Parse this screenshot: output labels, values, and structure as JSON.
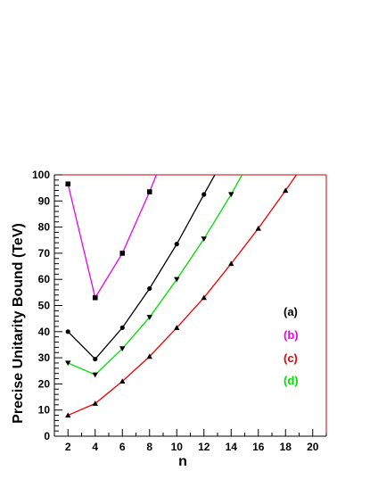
{
  "chart_data": {
    "type": "line",
    "xlabel": "n",
    "ylabel": "Precise Unitarity Bound (TeV)",
    "xlim": [
      1,
      21
    ],
    "ylim": [
      0,
      100
    ],
    "x_ticks": [
      2,
      4,
      6,
      8,
      10,
      12,
      14,
      16,
      18,
      20
    ],
    "y_ticks": [
      0,
      10,
      20,
      30,
      40,
      50,
      60,
      70,
      80,
      90,
      100
    ],
    "grid": false,
    "legend_placement": "right",
    "series": [
      {
        "name": "(a)",
        "color": "#000000",
        "marker": "circle",
        "points": [
          [
            2,
            40
          ],
          [
            4,
            29.5
          ],
          [
            6,
            41.5
          ],
          [
            8,
            56.5
          ],
          [
            10,
            73.5
          ],
          [
            12,
            92.5
          ]
        ],
        "curve_end": [
          12.8,
          100
        ]
      },
      {
        "name": "(b)",
        "color": "#ee00ee",
        "marker": "square",
        "points": [
          [
            2,
            96.5
          ],
          [
            4,
            53
          ],
          [
            6,
            70
          ],
          [
            8,
            93.5
          ]
        ],
        "curve_end": [
          8.5,
          100
        ]
      },
      {
        "name": "(c)",
        "color": "#ee0000",
        "marker": "triangle-up",
        "points": [
          [
            2,
            8
          ],
          [
            4,
            12.5
          ],
          [
            6,
            21
          ],
          [
            8,
            30.5
          ],
          [
            10,
            41.5
          ],
          [
            12,
            53
          ],
          [
            14,
            66
          ],
          [
            16,
            79.5
          ],
          [
            18,
            94
          ]
        ],
        "curve_end": [
          18.8,
          100
        ]
      },
      {
        "name": "(d)",
        "color": "#00dd00",
        "marker": "triangle-down",
        "points": [
          [
            2,
            28
          ],
          [
            4,
            23.5
          ],
          [
            6,
            33.5
          ],
          [
            8,
            45.5
          ],
          [
            10,
            60
          ],
          [
            12,
            75.5
          ],
          [
            14,
            92.5
          ]
        ],
        "curve_end": [
          14.8,
          100
        ]
      }
    ]
  }
}
